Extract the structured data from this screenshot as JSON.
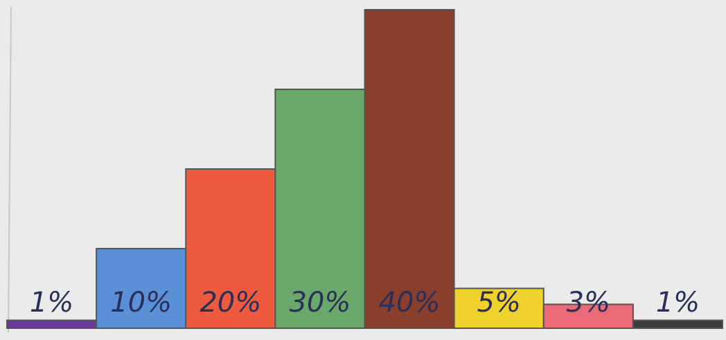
{
  "chart_data": {
    "type": "bar",
    "categories": [
      null,
      null,
      null,
      null,
      null,
      null,
      null,
      null
    ],
    "values": [
      1,
      10,
      20,
      30,
      40,
      5,
      3,
      1
    ],
    "value_labels": [
      "1%",
      "10%",
      "20%",
      "30%",
      "40%",
      "5%",
      "3%",
      "1%"
    ],
    "colors": [
      "#6a3a9a",
      "#5b8fd6",
      "#ee5a3e",
      "#6aa86a",
      "#8a3e2c",
      "#f0d22e",
      "#ec6a78",
      "#3c3c3c"
    ],
    "ylim": [
      0,
      40
    ]
  }
}
